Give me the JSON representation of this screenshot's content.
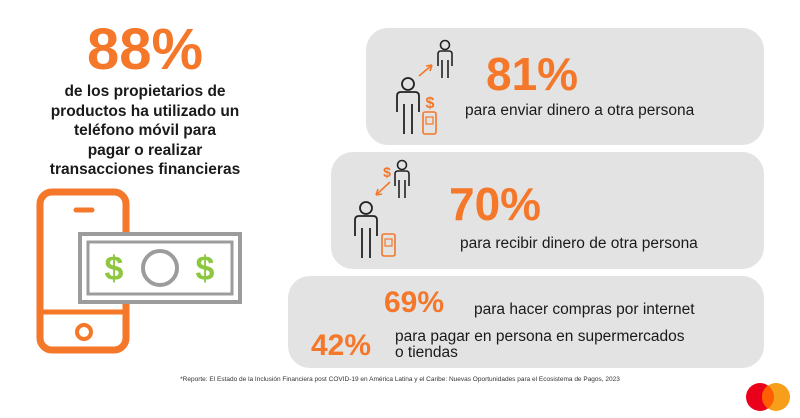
{
  "hero": {
    "percent": "88%",
    "lines": [
      "de los propietarios de",
      "productos ha utilizado un",
      "teléfono móvil para",
      "pagar o realizar",
      "transacciones financieras"
    ]
  },
  "stats": {
    "send": {
      "percent": "81%",
      "text": "para enviar dinero a otra persona"
    },
    "receive": {
      "percent": "70%",
      "text": "para recibir dinero de otra persona"
    },
    "online": {
      "percent": "69%",
      "text": "para hacer compras por internet"
    },
    "instore": {
      "percent": "42%",
      "text_line1": "para pagar en persona en supermercados",
      "text_line2": "o tiendas"
    }
  },
  "icons": {
    "dollar": "$"
  },
  "footnote": "*Reporte: El Estado de la Inclusión Financiera post COVID-19 en América Latina y el Caribe: Nuevas Oportunidades para el Ecosistema de Pagos, 2023",
  "colors": {
    "accent": "#f4772a",
    "money_green": "#8dc63f",
    "card_bg": "#e3e3e3",
    "logo_red": "#eb001b",
    "logo_yellow": "#f79e1b",
    "logo_orange": "#ff5f00"
  }
}
